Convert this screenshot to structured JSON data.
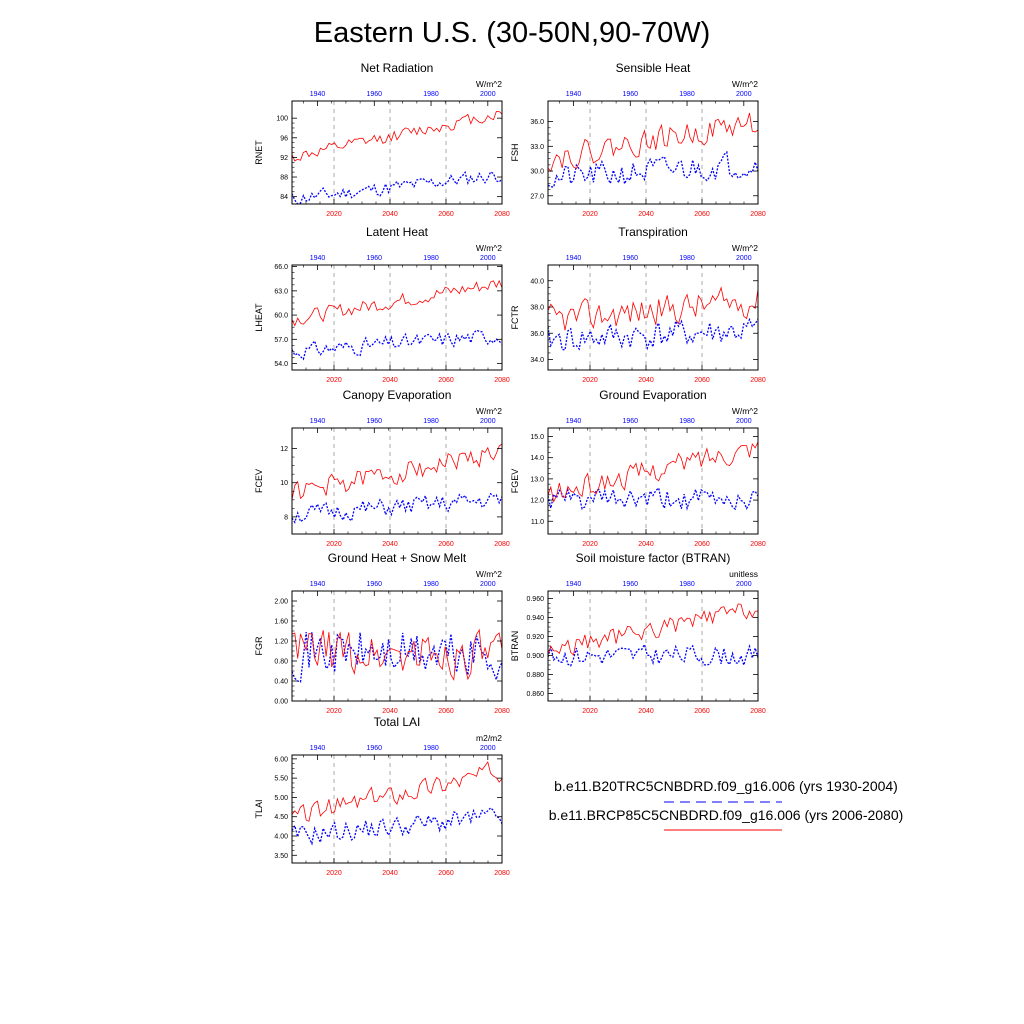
{
  "figure_title": "Eastern U.S. (30-50N,90-70W)",
  "legend": [
    {
      "label": "b.e11.B20TRC5CNBDRD.f09_g16.006 (yrs 1930-2004)",
      "color": "#0000ff",
      "style": "dashed"
    },
    {
      "label": "b.e11.BRCP85C5CNBDRD.f09_g16.006 (yrs 2006-2080)",
      "color": "#ff0000",
      "style": "solid"
    }
  ],
  "colors": {
    "historical": "#0000ff",
    "future": "#ff0000",
    "axis": "#000000"
  },
  "chart_data": [
    {
      "type": "line",
      "title": "Net Radiation",
      "ylabel": "RNET",
      "units": "W/m^2",
      "yticks": [
        "84",
        "88",
        "92",
        "96",
        "100"
      ],
      "yticks_num": [
        84,
        88,
        92,
        96,
        100
      ],
      "ylim": [
        82.5,
        103.5
      ],
      "top_axis": {
        "labels": [
          "1940",
          "1960",
          "1980",
          "2000"
        ],
        "values": [
          1940,
          1960,
          1980,
          2000
        ],
        "range": [
          1931,
          2005
        ]
      },
      "bottom_axis": {
        "labels": [
          "2020",
          "2040",
          "2060",
          "2080"
        ],
        "values": [
          2020,
          2040,
          2060,
          2080
        ],
        "range": [
          2005,
          2080
        ]
      },
      "series": [
        {
          "role": "historical",
          "base": [
            83.5,
            88.5
          ],
          "amp": 1.6,
          "seed": 11
        },
        {
          "role": "future",
          "base": [
            92,
            101
          ],
          "amp": 1.4,
          "seed": 12
        }
      ]
    },
    {
      "type": "line",
      "title": "Sensible Heat",
      "ylabel": "FSH",
      "units": "W/m^2",
      "yticks": [
        "27.0",
        "30.0",
        "33.0",
        "36.0"
      ],
      "yticks_num": [
        27,
        30,
        33,
        36
      ],
      "ylim": [
        26,
        38.5
      ],
      "top_axis": {
        "labels": [
          "1940",
          "1960",
          "1980",
          "2000"
        ],
        "values": [
          1940,
          1960,
          1980,
          2000
        ],
        "range": [
          1931,
          2005
        ]
      },
      "bottom_axis": {
        "labels": [
          "2020",
          "2040",
          "2060",
          "2080"
        ],
        "values": [
          2020,
          2040,
          2060,
          2080
        ],
        "range": [
          2005,
          2080
        ]
      },
      "series": [
        {
          "role": "historical",
          "base": [
            29,
            31
          ],
          "amp": 1.8,
          "seed": 21
        },
        {
          "role": "future",
          "base": [
            31.5,
            36
          ],
          "amp": 1.7,
          "seed": 22
        }
      ]
    },
    {
      "type": "line",
      "title": "Latent Heat",
      "ylabel": "LHEAT",
      "units": "W/m^2",
      "yticks": [
        "54.0",
        "57.0",
        "60.0",
        "63.0",
        "66.0"
      ],
      "yticks_num": [
        54,
        57,
        60,
        63,
        66
      ],
      "ylim": [
        53.2,
        66.2
      ],
      "top_axis": {
        "labels": [
          "1940",
          "1960",
          "1980",
          "2000"
        ],
        "values": [
          1940,
          1960,
          1980,
          2000
        ],
        "range": [
          1931,
          2005
        ]
      },
      "bottom_axis": {
        "labels": [
          "2020",
          "2040",
          "2060",
          "2080"
        ],
        "values": [
          2020,
          2040,
          2060,
          2080
        ],
        "range": [
          2005,
          2080
        ]
      },
      "series": [
        {
          "role": "historical",
          "base": [
            55.5,
            57.5
          ],
          "amp": 1.1,
          "seed": 31
        },
        {
          "role": "future",
          "base": [
            59.5,
            64
          ],
          "amp": 1.0,
          "seed": 32
        }
      ]
    },
    {
      "type": "line",
      "title": "Transpiration",
      "ylabel": "FCTR",
      "units": "W/m^2",
      "yticks": [
        "34.0",
        "36.0",
        "38.0",
        "40.0"
      ],
      "yticks_num": [
        34,
        36,
        38,
        40
      ],
      "ylim": [
        33.2,
        41.2
      ],
      "top_axis": {
        "labels": [
          "1940",
          "1960",
          "1980",
          "2000"
        ],
        "values": [
          1940,
          1960,
          1980,
          2000
        ],
        "range": [
          1931,
          2005
        ]
      },
      "bottom_axis": {
        "labels": [
          "2020",
          "2040",
          "2060",
          "2080"
        ],
        "values": [
          2020,
          2040,
          2060,
          2080
        ],
        "range": [
          2005,
          2080
        ]
      },
      "series": [
        {
          "role": "historical",
          "base": [
            35.5,
            36.2
          ],
          "amp": 1.2,
          "seed": 41
        },
        {
          "role": "future",
          "base": [
            37,
            38.5
          ],
          "amp": 1.3,
          "seed": 42
        }
      ]
    },
    {
      "type": "line",
      "title": "Canopy Evaporation",
      "ylabel": "FCEV",
      "units": "W/m^2",
      "yticks": [
        "8",
        "10",
        "12"
      ],
      "yticks_num": [
        8,
        10,
        12
      ],
      "ylim": [
        7,
        13.2
      ],
      "top_axis": {
        "labels": [
          "1940",
          "1960",
          "1980",
          "2000"
        ],
        "values": [
          1940,
          1960,
          1980,
          2000
        ],
        "range": [
          1931,
          2005
        ]
      },
      "bottom_axis": {
        "labels": [
          "2020",
          "2040",
          "2060",
          "2080"
        ],
        "values": [
          2020,
          2040,
          2060,
          2080
        ],
        "range": [
          2005,
          2080
        ]
      },
      "series": [
        {
          "role": "historical",
          "base": [
            8.1,
            9
          ],
          "amp": 0.6,
          "seed": 51
        },
        {
          "role": "future",
          "base": [
            9.4,
            11.8
          ],
          "amp": 0.7,
          "seed": 52
        }
      ]
    },
    {
      "type": "line",
      "title": "Ground Evaporation",
      "ylabel": "FGEV",
      "units": "W/m^2",
      "yticks": [
        "11.0",
        "12.0",
        "13.0",
        "14.0",
        "15.0"
      ],
      "yticks_num": [
        11,
        12,
        13,
        14,
        15
      ],
      "ylim": [
        10.4,
        15.4
      ],
      "top_axis": {
        "labels": [
          "1940",
          "1960",
          "1980",
          "2000"
        ],
        "values": [
          1940,
          1960,
          1980,
          2000
        ],
        "range": [
          1931,
          2005
        ]
      },
      "bottom_axis": {
        "labels": [
          "2020",
          "2040",
          "2060",
          "2080"
        ],
        "values": [
          2020,
          2040,
          2060,
          2080
        ],
        "range": [
          2005,
          2080
        ]
      },
      "series": [
        {
          "role": "historical",
          "base": [
            12,
            12
          ],
          "amp": 0.6,
          "seed": 61
        },
        {
          "role": "future",
          "base": [
            12.2,
            14.6
          ],
          "amp": 0.6,
          "seed": 62
        }
      ]
    },
    {
      "type": "line",
      "title": "Ground Heat + Snow Melt",
      "ylabel": "FGR",
      "units": "W/m^2",
      "yticks": [
        "0.00",
        "0.40",
        "0.80",
        "1.20",
        "1.60",
        "2.00"
      ],
      "yticks_num": [
        0,
        0.4,
        0.8,
        1.2,
        1.6,
        2.0
      ],
      "ylim": [
        0,
        2.2
      ],
      "top_axis": {
        "labels": [
          "1940",
          "1960",
          "1980",
          "2000"
        ],
        "values": [
          1940,
          1960,
          1980,
          2000
        ],
        "range": [
          1931,
          2005
        ]
      },
      "bottom_axis": {
        "labels": [
          "2020",
          "2040",
          "2060",
          "2080"
        ],
        "values": [
          2020,
          2040,
          2060,
          2080
        ],
        "range": [
          2005,
          2080
        ]
      },
      "series": [
        {
          "role": "historical",
          "base": [
            1.0,
            0.9
          ],
          "amp": 0.55,
          "seed": 71
        },
        {
          "role": "future",
          "base": [
            1.0,
            0.9
          ],
          "amp": 0.5,
          "seed": 72
        }
      ]
    },
    {
      "type": "line",
      "title": "Soil moisture factor (BTRAN)",
      "ylabel": "BTRAN",
      "units": "unitless",
      "yticks": [
        "0.860",
        "0.880",
        "0.900",
        "0.920",
        "0.940",
        "0.960"
      ],
      "yticks_num": [
        0.86,
        0.88,
        0.9,
        0.92,
        0.94,
        0.96
      ],
      "ylim": [
        0.852,
        0.968
      ],
      "top_axis": {
        "labels": [
          "1940",
          "1960",
          "1980",
          "2000"
        ],
        "values": [
          1940,
          1960,
          1980,
          2000
        ],
        "range": [
          1931,
          2005
        ]
      },
      "bottom_axis": {
        "labels": [
          "2020",
          "2040",
          "2060",
          "2080"
        ],
        "values": [
          2020,
          2040,
          2060,
          2080
        ],
        "range": [
          2005,
          2080
        ]
      },
      "series": [
        {
          "role": "historical",
          "base": [
            0.9,
            0.9
          ],
          "amp": 0.012,
          "seed": 81
        },
        {
          "role": "future",
          "base": [
            0.905,
            0.95
          ],
          "amp": 0.011,
          "seed": 82
        }
      ]
    },
    {
      "type": "line",
      "title": "Total LAI",
      "ylabel": "TLAI",
      "units": "m2/m2",
      "yticks": [
        "3.50",
        "4.00",
        "4.50",
        "5.00",
        "5.50",
        "6.00"
      ],
      "yticks_num": [
        3.5,
        4,
        4.5,
        5,
        5.5,
        6
      ],
      "ylim": [
        3.3,
        6.1
      ],
      "top_axis": {
        "labels": [
          "1940",
          "1960",
          "1980",
          "2000"
        ],
        "values": [
          1940,
          1960,
          1980,
          2000
        ],
        "range": [
          1931,
          2005
        ]
      },
      "bottom_axis": {
        "labels": [
          "2020",
          "2040",
          "2060",
          "2080"
        ],
        "values": [
          2020,
          2040,
          2060,
          2080
        ],
        "range": [
          2005,
          2080
        ]
      },
      "series": [
        {
          "role": "historical",
          "base": [
            4.0,
            4.5
          ],
          "amp": 0.3,
          "seed": 91
        },
        {
          "role": "future",
          "base": [
            4.5,
            5.7
          ],
          "amp": 0.3,
          "seed": 92
        }
      ]
    }
  ]
}
